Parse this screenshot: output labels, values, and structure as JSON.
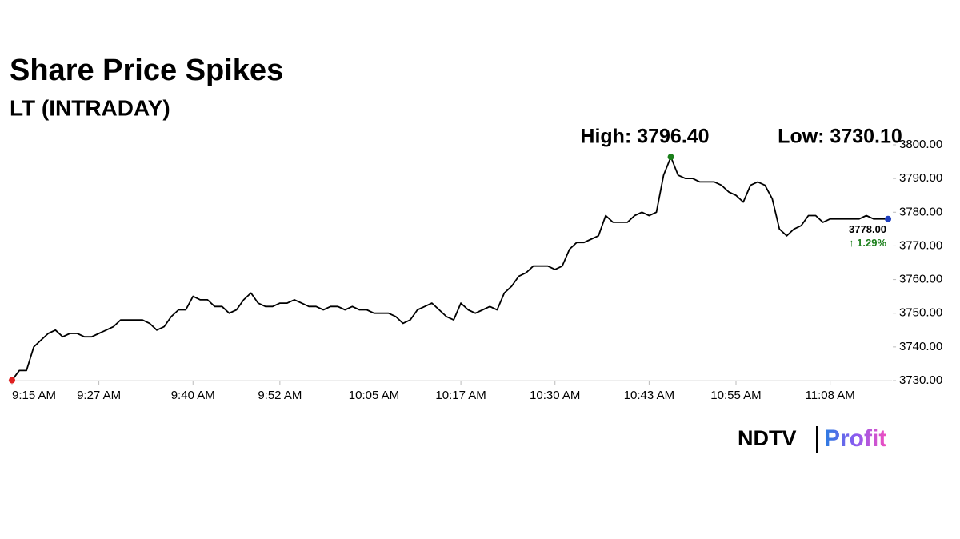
{
  "chart_data": {
    "type": "line",
    "title": "Share Price Spikes",
    "subtitle": "LT (INTRADAY)",
    "high_label": "High: 3796.40",
    "low_label": "Low: 3730.10",
    "last_label": "3778.00",
    "change_label": "↑ 1.29%",
    "color": "#000000",
    "high_color": "#1a7f1a",
    "low_color": "#e02020",
    "last_color": "#1f3fbf",
    "x": [
      "9:15 AM",
      "9:16 AM",
      "9:17 AM",
      "9:18 AM",
      "9:19 AM",
      "9:20 AM",
      "9:21 AM",
      "9:22 AM",
      "9:23 AM",
      "9:24 AM",
      "9:25 AM",
      "9:26 AM",
      "9:27 AM",
      "9:28 AM",
      "9:29 AM",
      "9:30 AM",
      "9:31 AM",
      "9:32 AM",
      "9:33 AM",
      "9:34 AM",
      "9:35 AM",
      "9:36 AM",
      "9:37 AM",
      "9:38 AM",
      "9:39 AM",
      "9:40 AM",
      "9:41 AM",
      "9:42 AM",
      "9:43 AM",
      "9:44 AM",
      "9:45 AM",
      "9:46 AM",
      "9:47 AM",
      "9:48 AM",
      "9:49 AM",
      "9:50 AM",
      "9:51 AM",
      "9:52 AM",
      "9:53 AM",
      "9:54 AM",
      "9:55 AM",
      "9:56 AM",
      "9:57 AM",
      "9:58 AM",
      "9:59 AM",
      "10:00 AM",
      "10:01 AM",
      "10:02 AM",
      "10:03 AM",
      "10:04 AM",
      "10:05 AM",
      "10:06 AM",
      "10:07 AM",
      "10:08 AM",
      "10:09 AM",
      "10:10 AM",
      "10:11 AM",
      "10:12 AM",
      "10:13 AM",
      "10:14 AM",
      "10:15 AM",
      "10:16 AM",
      "10:17 AM",
      "10:18 AM",
      "10:19 AM",
      "10:20 AM",
      "10:21 AM",
      "10:22 AM",
      "10:23 AM",
      "10:24 AM",
      "10:25 AM",
      "10:26 AM",
      "10:27 AM",
      "10:28 AM",
      "10:29 AM",
      "10:30 AM",
      "10:31 AM",
      "10:32 AM",
      "10:33 AM",
      "10:34 AM",
      "10:35 AM",
      "10:36 AM",
      "10:37 AM",
      "10:38 AM",
      "10:39 AM",
      "10:40 AM",
      "10:41 AM",
      "10:42 AM",
      "10:43 AM",
      "10:44 AM",
      "10:45 AM",
      "10:46 AM",
      "10:47 AM",
      "10:48 AM",
      "10:49 AM",
      "10:50 AM",
      "10:51 AM",
      "10:52 AM",
      "10:53 AM",
      "10:54 AM",
      "10:55 AM",
      "10:56 AM",
      "10:57 AM",
      "10:58 AM",
      "10:59 AM",
      "11:00 AM",
      "11:01 AM",
      "11:02 AM",
      "11:03 AM",
      "11:04 AM",
      "11:05 AM",
      "11:06 AM",
      "11:07 AM",
      "11:08 AM",
      "11:09 AM",
      "11:10 AM",
      "11:11 AM",
      "11:12 AM",
      "11:13 AM",
      "11:14 AM",
      "11:15 AM",
      "11:16 AM"
    ],
    "values": [
      3730.1,
      3733,
      3733,
      3740,
      3742,
      3744,
      3745,
      3743,
      3744,
      3744,
      3743,
      3743,
      3744,
      3745,
      3746,
      3748,
      3748,
      3748,
      3748,
      3747,
      3745,
      3746,
      3749,
      3751,
      3751,
      3755,
      3754,
      3754,
      3752,
      3752,
      3750,
      3751,
      3754,
      3756,
      3753,
      3752,
      3752,
      3753,
      3753,
      3754,
      3753,
      3752,
      3752,
      3751,
      3752,
      3752,
      3751,
      3752,
      3751,
      3751,
      3750,
      3750,
      3750,
      3749,
      3747,
      3748,
      3751,
      3752,
      3753,
      3751,
      3749,
      3748,
      3753,
      3751,
      3750,
      3751,
      3752,
      3751,
      3756,
      3758,
      3761,
      3762,
      3764,
      3764,
      3764,
      3763,
      3764,
      3769,
      3771,
      3771,
      3772,
      3773,
      3779,
      3777,
      3777,
      3777,
      3779,
      3780,
      3779,
      3780,
      3791,
      3796.4,
      3791,
      3790,
      3790,
      3789,
      3789,
      3789,
      3788,
      3786,
      3785,
      3783,
      3788,
      3789,
      3788,
      3784,
      3775,
      3773,
      3775,
      3776,
      3779,
      3779,
      3777,
      3778,
      3778,
      3778,
      3778,
      3778,
      3779,
      3778,
      3778,
      3778
    ],
    "high_index": 91,
    "low_index": 0,
    "xticks": [
      "9:15 AM",
      "9:27 AM",
      "9:40 AM",
      "9:52 AM",
      "10:05 AM",
      "10:17 AM",
      "10:30 AM",
      "10:43 AM",
      "10:55 AM",
      "11:08 AM"
    ],
    "ylim": [
      3730,
      3800
    ],
    "yticks": [
      {
        "value": 3730,
        "label": "3730.00"
      },
      {
        "value": 3740,
        "label": "3740.00"
      },
      {
        "value": 3750,
        "label": "3750.00"
      },
      {
        "value": 3760,
        "label": "3760.00"
      },
      {
        "value": 3770,
        "label": "3770.00"
      },
      {
        "value": 3780,
        "label": "3780.00"
      },
      {
        "value": 3790,
        "label": "3790.00"
      },
      {
        "value": 3800,
        "label": "3800.00"
      }
    ],
    "grid": false
  },
  "logo": {
    "brand": "NDTV",
    "product": "Profit"
  }
}
